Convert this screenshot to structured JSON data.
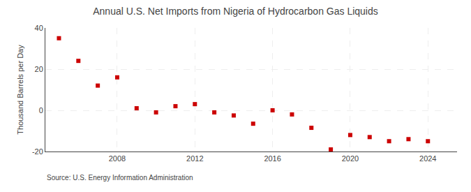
{
  "chart_data": {
    "type": "scatter",
    "title": "Annual U.S. Net Imports from Nigeria of Hydrocarbon Gas Liquids",
    "ylabel": "Thousand Barrels per Day",
    "source": "Source: U.S. Energy Information Administration",
    "x": [
      2005,
      2006,
      2007,
      2008,
      2009,
      2010,
      2011,
      2012,
      2013,
      2014,
      2015,
      2016,
      2017,
      2018,
      2019,
      2020,
      2021,
      2022,
      2023,
      2024
    ],
    "values": [
      35.0,
      24.0,
      12.0,
      16.0,
      1.0,
      -1.0,
      2.0,
      3.0,
      -1.0,
      -2.5,
      -6.5,
      0.0,
      -2.0,
      -8.5,
      -19.0,
      -12.0,
      -13.0,
      -15.0,
      -14.0,
      -15.0
    ],
    "color": "#cc0000",
    "marker": "square",
    "xlim": [
      2004.3,
      2025.5
    ],
    "xticks": [
      2008,
      2012,
      2016,
      2020,
      2024
    ],
    "ylim": [
      -20,
      40
    ],
    "yticks": [
      -20,
      0,
      20,
      40
    ],
    "grid": true
  }
}
